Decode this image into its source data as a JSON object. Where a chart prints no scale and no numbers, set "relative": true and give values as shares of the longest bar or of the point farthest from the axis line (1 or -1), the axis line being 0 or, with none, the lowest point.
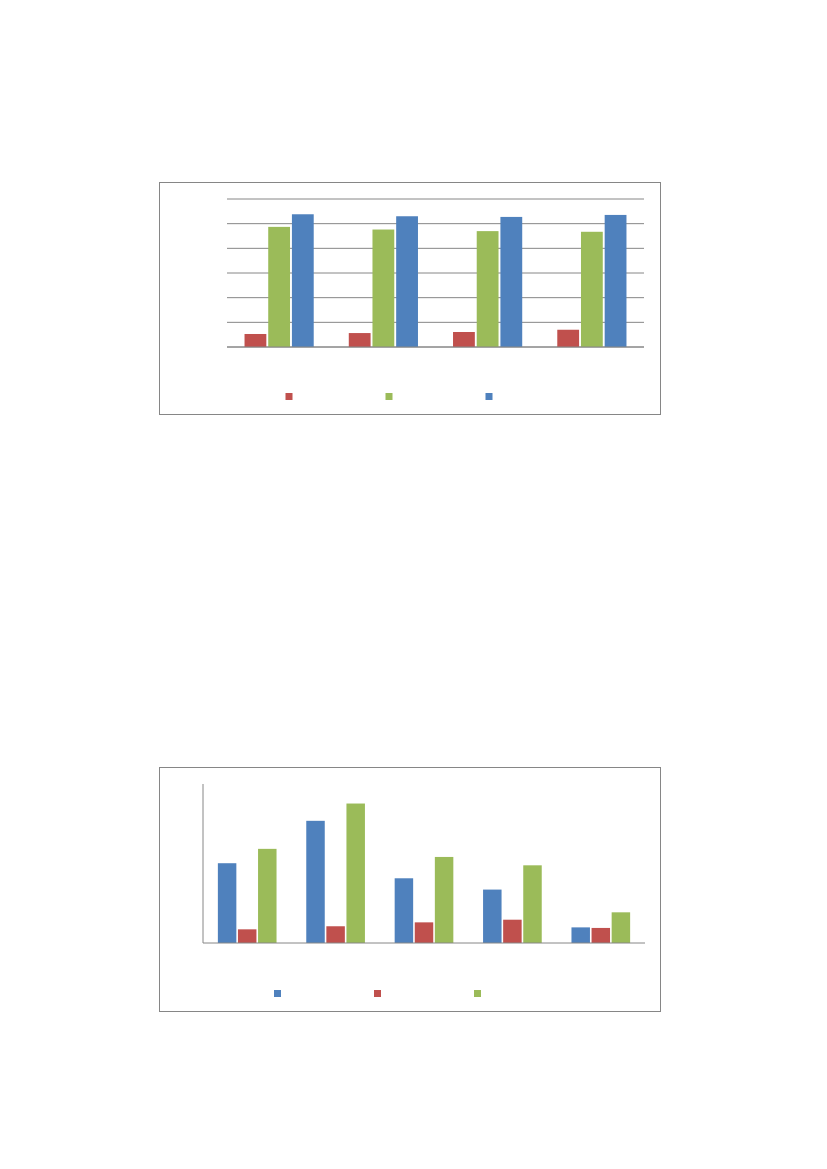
{
  "chart_data": [
    {
      "type": "bar",
      "relative": true,
      "categories": [
        null,
        null,
        null,
        null
      ],
      "grid": "y",
      "series": [
        {
          "color": "#c0504d",
          "values": [
            0.098,
            0.105,
            0.113,
            0.13
          ]
        },
        {
          "color": "#9bbb59",
          "values": [
            0.905,
            0.885,
            0.873,
            0.868
          ]
        },
        {
          "color": "#4f81bd",
          "values": [
            1,
            0.985,
            0.98,
            0.995
          ]
        }
      ]
    },
    {
      "type": "bar",
      "relative": true,
      "categories": [
        null,
        null,
        null,
        null,
        null
      ],
      "series": [
        {
          "color": "#4f81bd",
          "values": [
            0.572,
            0.876,
            0.464,
            0.383,
            0.112
          ]
        },
        {
          "color": "#c0504d",
          "values": [
            0.098,
            0.12,
            0.148,
            0.167,
            0.108
          ]
        },
        {
          "color": "#9bbb59",
          "values": [
            0.675,
            1,
            0.617,
            0.557,
            0.22
          ]
        }
      ]
    }
  ]
}
